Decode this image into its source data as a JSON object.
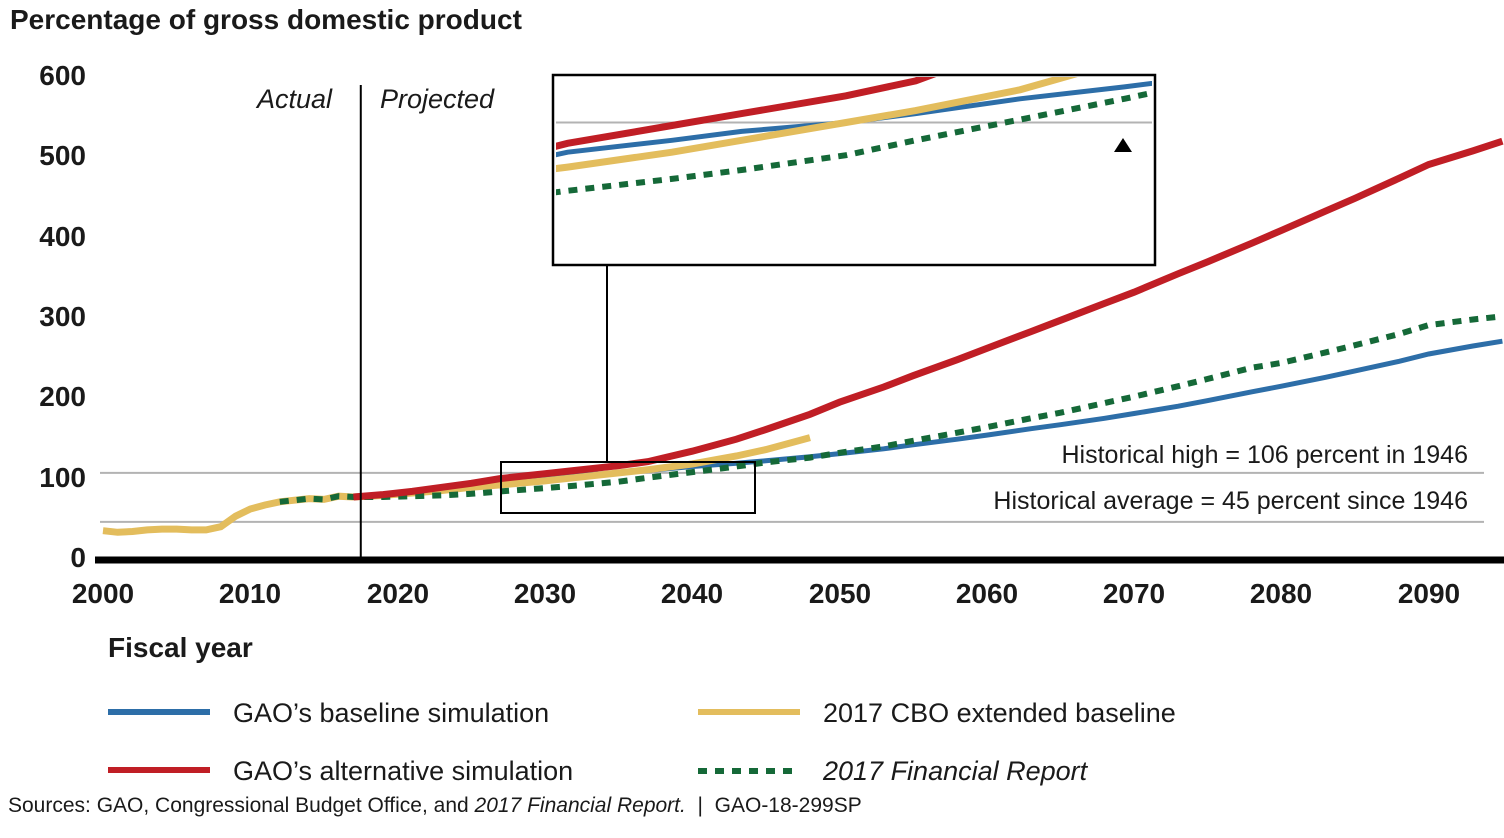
{
  "title": "Percentage of gross domestic product",
  "x_axis": {
    "label": "Fiscal year"
  },
  "region_labels": {
    "actual": "Actual",
    "projected": "Projected"
  },
  "y_ticks": [
    "600",
    "500",
    "400",
    "300",
    "200",
    "100",
    "0"
  ],
  "x_ticks": [
    "2000",
    "2010",
    "2020",
    "2030",
    "2040",
    "2050",
    "2060",
    "2070",
    "2080",
    "2090"
  ],
  "legend": [
    {
      "label": "GAO’s baseline simulation",
      "color": "#2d6ea8",
      "dash": false,
      "italic": false
    },
    {
      "label": "GAO’s alternative simulation",
      "color": "#c01e25",
      "dash": false,
      "italic": false
    },
    {
      "label": "2017 CBO extended baseline",
      "color": "#e3bd5d",
      "dash": false,
      "italic": false
    },
    {
      "label": "2017 Financial Report",
      "color": "#156938",
      "dash": true,
      "italic": true
    }
  ],
  "source_note": {
    "prefix": "Sources: GAO, Congressional Budget Office, and ",
    "italic_part": "2017 Financial Report.",
    "suffix": "  |  GAO-18-299SP"
  },
  "chart_data": {
    "type": "line",
    "title": "Percentage of gross domestic product",
    "xlabel": "Fiscal year",
    "ylabel": "Percentage of gross domestic product",
    "xlim": [
      2000,
      2095
    ],
    "ylim": [
      0,
      600
    ],
    "grid": false,
    "divider_year": 2017.5,
    "reference_lines": [
      {
        "value": 106,
        "label": "Historical high = 106 percent in 1946",
        "color": "#b3b3b3"
      },
      {
        "value": 45,
        "label": "Historical average = 45 percent since 1946",
        "color": "#b3b3b3"
      }
    ],
    "series": [
      {
        "id": "historical-actual",
        "name": "Historical (actual)",
        "color": "#e3bd5d",
        "style": "solid",
        "width": 7,
        "points": [
          [
            2000,
            34
          ],
          [
            2001,
            32
          ],
          [
            2002,
            33
          ],
          [
            2003,
            35
          ],
          [
            2004,
            36
          ],
          [
            2005,
            36
          ],
          [
            2006,
            35
          ],
          [
            2007,
            35
          ],
          [
            2008,
            39
          ],
          [
            2009,
            52
          ],
          [
            2010,
            61
          ],
          [
            2011,
            66
          ],
          [
            2012,
            70
          ],
          [
            2013,
            72
          ],
          [
            2014,
            74
          ],
          [
            2015,
            73
          ],
          [
            2016,
            77
          ],
          [
            2017,
            76
          ]
        ]
      },
      {
        "id": "gao-baseline",
        "name": "GAO’s baseline simulation",
        "color": "#2d6ea8",
        "style": "solid",
        "width": 5,
        "points": [
          [
            2017,
            76
          ],
          [
            2019,
            79
          ],
          [
            2021,
            83
          ],
          [
            2023,
            87
          ],
          [
            2025,
            91
          ],
          [
            2027,
            96
          ],
          [
            2030,
            100
          ],
          [
            2032,
            103
          ],
          [
            2035,
            106
          ],
          [
            2037,
            109
          ],
          [
            2040,
            114
          ],
          [
            2043,
            118
          ],
          [
            2045,
            121
          ],
          [
            2048,
            126
          ],
          [
            2050,
            130
          ],
          [
            2053,
            136
          ],
          [
            2055,
            141
          ],
          [
            2058,
            148
          ],
          [
            2060,
            153
          ],
          [
            2063,
            161
          ],
          [
            2065,
            166
          ],
          [
            2068,
            174
          ],
          [
            2070,
            180
          ],
          [
            2073,
            189
          ],
          [
            2075,
            196
          ],
          [
            2078,
            207
          ],
          [
            2080,
            214
          ],
          [
            2083,
            225
          ],
          [
            2085,
            233
          ],
          [
            2088,
            245
          ],
          [
            2090,
            254
          ],
          [
            2093,
            264
          ],
          [
            2095,
            270
          ]
        ]
      },
      {
        "id": "cbo-extended",
        "name": "2017 CBO extended baseline",
        "color": "#e3bd5d",
        "style": "solid",
        "width": 7,
        "points": [
          [
            2017,
            76
          ],
          [
            2019,
            78
          ],
          [
            2021,
            81
          ],
          [
            2023,
            84
          ],
          [
            2025,
            88
          ],
          [
            2027,
            91
          ],
          [
            2030,
            96
          ],
          [
            2032,
            100
          ],
          [
            2035,
            106
          ],
          [
            2037,
            110
          ],
          [
            2040,
            117
          ],
          [
            2043,
            127
          ],
          [
            2045,
            135
          ],
          [
            2048,
            150
          ]
        ]
      },
      {
        "id": "financial-report",
        "name": "2017 Financial Report",
        "color": "#156938",
        "style": "dashed",
        "width": 6,
        "points": [
          [
            2012,
            70
          ],
          [
            2013,
            72
          ],
          [
            2014,
            74
          ],
          [
            2015,
            73
          ],
          [
            2016,
            77
          ],
          [
            2017,
            76
          ],
          [
            2019,
            76
          ],
          [
            2021,
            77
          ],
          [
            2023,
            78
          ],
          [
            2025,
            80
          ],
          [
            2027,
            83
          ],
          [
            2030,
            87
          ],
          [
            2032,
            90
          ],
          [
            2035,
            95
          ],
          [
            2037,
            100
          ],
          [
            2040,
            107
          ],
          [
            2043,
            114
          ],
          [
            2045,
            119
          ],
          [
            2048,
            125
          ],
          [
            2050,
            131
          ],
          [
            2053,
            139
          ],
          [
            2055,
            146
          ],
          [
            2058,
            156
          ],
          [
            2060,
            163
          ],
          [
            2063,
            174
          ],
          [
            2065,
            181
          ],
          [
            2068,
            193
          ],
          [
            2070,
            201
          ],
          [
            2073,
            214
          ],
          [
            2075,
            223
          ],
          [
            2078,
            237
          ],
          [
            2080,
            243
          ],
          [
            2083,
            256
          ],
          [
            2085,
            265
          ],
          [
            2088,
            279
          ],
          [
            2090,
            290
          ],
          [
            2093,
            297
          ],
          [
            2095,
            301
          ]
        ]
      },
      {
        "id": "gao-alternative",
        "name": "GAO’s alternative simulation",
        "color": "#c01e25",
        "style": "solid",
        "width": 7,
        "points": [
          [
            2017,
            76
          ],
          [
            2019,
            79
          ],
          [
            2021,
            83
          ],
          [
            2023,
            88
          ],
          [
            2025,
            93
          ],
          [
            2027,
            99
          ],
          [
            2030,
            105
          ],
          [
            2032,
            109
          ],
          [
            2035,
            115
          ],
          [
            2037,
            120
          ],
          [
            2040,
            133
          ],
          [
            2043,
            148
          ],
          [
            2045,
            160
          ],
          [
            2048,
            179
          ],
          [
            2050,
            194
          ],
          [
            2053,
            213
          ],
          [
            2055,
            227
          ],
          [
            2058,
            247
          ],
          [
            2060,
            261
          ],
          [
            2063,
            282
          ],
          [
            2065,
            296
          ],
          [
            2068,
            317
          ],
          [
            2070,
            331
          ],
          [
            2073,
            354
          ],
          [
            2075,
            369
          ],
          [
            2078,
            392
          ],
          [
            2080,
            408
          ],
          [
            2083,
            432
          ],
          [
            2085,
            448
          ],
          [
            2088,
            473
          ],
          [
            2090,
            490
          ],
          [
            2093,
            507
          ],
          [
            2095,
            519
          ]
        ]
      }
    ],
    "inset": {
      "x_range": [
        2026.5,
        2044
      ],
      "value_range": [
        58,
        122
      ],
      "reference_value": 106,
      "note_line1": "Historical high = 106",
      "note_line2": "percent in 1946",
      "ticks": [
        {
          "year": 2030,
          "label": "2030"
        },
        {
          "year": 2040,
          "label": "2040"
        }
      ]
    }
  }
}
